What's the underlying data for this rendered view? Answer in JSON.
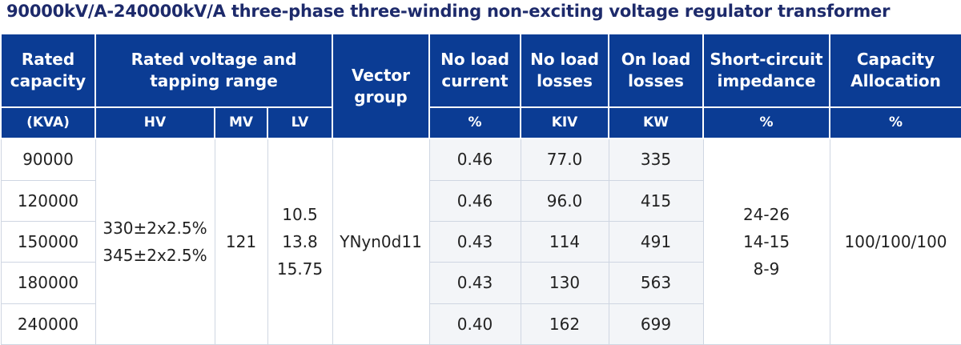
{
  "title": "90000kV/A-240000kV/A three-phase three-winding non-exciting voltage regulator transformer",
  "header": {
    "rated_capacity": [
      "Rated",
      "capacity"
    ],
    "rated_voltage": [
      "Rated voltage and",
      "tapping range"
    ],
    "vector_group": [
      "Vector",
      "group"
    ],
    "no_load_current": [
      "No load",
      "current"
    ],
    "no_load_losses": [
      "No load",
      "losses"
    ],
    "on_load_losses": [
      "On load",
      "losses"
    ],
    "short_circuit": [
      "Short-circuit",
      "impedance"
    ],
    "capacity_allocation": [
      "Capacity",
      "Allocation"
    ]
  },
  "units": {
    "capacity": "(KVA)",
    "hv": "HV",
    "mv": "MV",
    "lv": "LV",
    "current": "%",
    "no_load_losses": "KIV",
    "on_load_losses": "KW",
    "impedance": "%",
    "allocation": "%"
  },
  "rows": [
    {
      "capacity": "90000",
      "current": "0.46",
      "no_load_losses": "77.0",
      "on_load_losses": "335"
    },
    {
      "capacity": "120000",
      "current": "0.46",
      "no_load_losses": "96.0",
      "on_load_losses": "415"
    },
    {
      "capacity": "150000",
      "current": "0.43",
      "no_load_losses": "114",
      "on_load_losses": "491"
    },
    {
      "capacity": "180000",
      "current": "0.43",
      "no_load_losses": "130",
      "on_load_losses": "563"
    },
    {
      "capacity": "240000",
      "current": "0.40",
      "no_load_losses": "162",
      "on_load_losses": "699"
    }
  ],
  "merged": {
    "hv": [
      "330±2x2.5%",
      "345±2x2.5%"
    ],
    "mv": "121",
    "lv": [
      "10.5",
      "13.8",
      "15.75"
    ],
    "vector_group": "YNyn0d11",
    "impedance": [
      "24-26",
      "14-15",
      "8-9"
    ],
    "allocation": "100/100/100"
  },
  "colors": {
    "header_bg": "#0b3c94",
    "title_text": "#1d2a6b",
    "shade_bg": "#f3f5f8"
  }
}
